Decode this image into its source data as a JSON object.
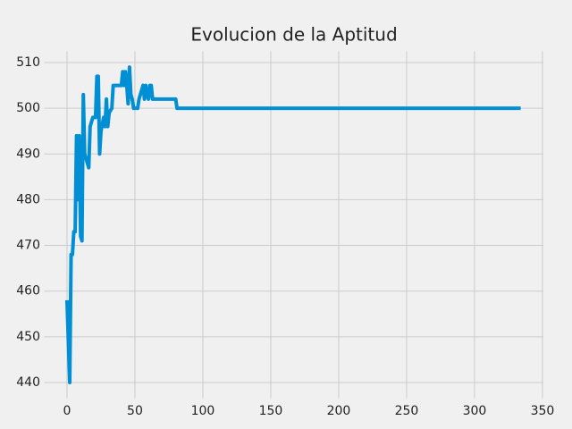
{
  "chart_data": {
    "type": "line",
    "title": "Evolucion de la Aptitud",
    "x": [
      0,
      1,
      2,
      3,
      4,
      5,
      6,
      7,
      8,
      9,
      10,
      11,
      12,
      13,
      15,
      16,
      17,
      19,
      21,
      22,
      23,
      24,
      25,
      27,
      28,
      29,
      30,
      31,
      33,
      34,
      40,
      41,
      42,
      43,
      44,
      45,
      46,
      47,
      48,
      49,
      52,
      53,
      54,
      56,
      57,
      58,
      59,
      60,
      61,
      62,
      63,
      64,
      80,
      81,
      334
    ],
    "series": [
      {
        "color": "#008fd5",
        "values": [
          458,
          449,
          440,
          468,
          468,
          473,
          473,
          494,
          480,
          494,
          472,
          471,
          503,
          490,
          488,
          487,
          496,
          498,
          498,
          507,
          507,
          490,
          495,
          498,
          496,
          502,
          496,
          499,
          500,
          505,
          505,
          508,
          505,
          508,
          505,
          501,
          509,
          503,
          502,
          500,
          500,
          502,
          503,
          505,
          502,
          505,
          503,
          502,
          505,
          505,
          502,
          502,
          502,
          500,
          500
        ]
      }
    ],
    "xlim": [
      -16.7,
      350.7
    ],
    "xticks": [
      0,
      50,
      100,
      150,
      200,
      250,
      300,
      350
    ],
    "ylim": [
      436.55,
      512.45
    ],
    "yticks": [
      440,
      450,
      460,
      470,
      480,
      490,
      500,
      510
    ],
    "grid": true
  }
}
